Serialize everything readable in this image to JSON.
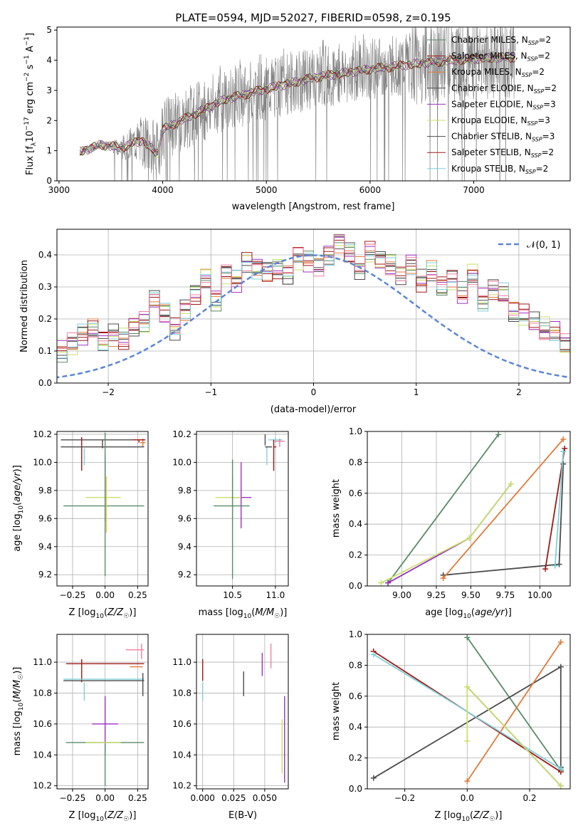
{
  "figure": {
    "title": "PLATE=0594, MJD=52027, FIBERID=0598, z=0.195"
  },
  "legend_labels": [
    {
      "base": "Chabrier MILES, N",
      "sub": "SSP",
      "tail": "=2"
    },
    {
      "base": "Salpeter MILES, N",
      "sub": "SSP",
      "tail": "=2"
    },
    {
      "base": "Kroupa MILES, N",
      "sub": "SSP",
      "tail": "=2"
    },
    {
      "base": "Chabrier ELODIE, N",
      "sub": "SSP",
      "tail": "=2"
    },
    {
      "base": "Salpeter ELODIE, N",
      "sub": "SSP",
      "tail": "=3"
    },
    {
      "base": "Kroupa ELODIE, N",
      "sub": "SSP",
      "tail": "=3"
    },
    {
      "base": "Chabrier STELIB, N",
      "sub": "SSP",
      "tail": "=3"
    },
    {
      "base": "Salpeter STELIB, N",
      "sub": "SSP",
      "tail": "=2"
    },
    {
      "base": "Kroupa STELIB, N",
      "sub": "SSP",
      "tail": "=2"
    }
  ],
  "chart_data": [
    {
      "id": "spectrum",
      "type": "line",
      "xlabel": "wavelength [Angstrom, rest frame]",
      "ylabel": "Flux [f",
      "ylabel_parts": [
        "Flux [f",
        "λ",
        "10",
        "−17",
        " erg cm",
        "−2",
        " s",
        "−1",
        " A",
        "−1",
        "]"
      ],
      "xlim": [
        2980,
        7930
      ],
      "ylim": [
        0,
        5.1
      ],
      "xticks": [
        3000,
        4000,
        5000,
        6000,
        7000
      ],
      "yticks": [
        0,
        1,
        2,
        3,
        4,
        5
      ],
      "series_colors": [
        "#5a8a6a",
        "#a01818",
        "#e07b39",
        "#4b4b4b",
        "#9b30c0",
        "#c8e06a",
        "#4b4b4b",
        "#a01818",
        "#7fd0d8"
      ],
      "data_color": "#808080",
      "continuum": [
        [
          3200,
          0.95
        ],
        [
          3400,
          1.2
        ],
        [
          3600,
          1.1
        ],
        [
          3800,
          1.35
        ],
        [
          3950,
          0.9
        ],
        [
          4000,
          1.7
        ],
        [
          4300,
          2.2
        ],
        [
          4600,
          2.7
        ],
        [
          5000,
          3.05
        ],
        [
          5500,
          3.45
        ],
        [
          6000,
          3.7
        ],
        [
          6500,
          3.9
        ],
        [
          7000,
          4.05
        ],
        [
          7400,
          4.1
        ]
      ]
    },
    {
      "id": "residuals",
      "type": "histogram",
      "xlabel": "(data-model)/error",
      "ylabel": "Normed distribution",
      "xlim": [
        -2.5,
        2.5
      ],
      "ylim": [
        0,
        0.48
      ],
      "xticks": [
        -2,
        -1,
        0,
        1,
        2
      ],
      "yticks": [
        0.0,
        0.1,
        0.2,
        0.3,
        0.4
      ],
      "legend": "𝒩(0, 1)",
      "gaussian_color": "#5b86d6",
      "bin_width": 0.1,
      "base_values": [
        0.02,
        0.02,
        0.03,
        0.03,
        0.03,
        0.04,
        0.05,
        0.06,
        0.08,
        0.09,
        0.1,
        0.12,
        0.15,
        0.17,
        0.13,
        0.15,
        0.14,
        0.18,
        0.19,
        0.26,
        0.22,
        0.17,
        0.23,
        0.28,
        0.33,
        0.26,
        0.34,
        0.32,
        0.38,
        0.36,
        0.35,
        0.36,
        0.34,
        0.39,
        0.38,
        0.37,
        0.4,
        0.44,
        0.41,
        0.36,
        0.41,
        0.38,
        0.37,
        0.34,
        0.37,
        0.32,
        0.35,
        0.3,
        0.32,
        0.28,
        0.34,
        0.26,
        0.29,
        0.28,
        0.22,
        0.21,
        0.19,
        0.17,
        0.16,
        0.12,
        0.14,
        0.1,
        0.09,
        0.08,
        0.07,
        0.06,
        0.05,
        0.05,
        0.04,
        0.03,
        0.02
      ],
      "series_colors": [
        "#5a8a6a",
        "#a01818",
        "#e07b39",
        "#4b4b4b",
        "#9b30c0",
        "#c8e06a",
        "#4b4b4b",
        "#a01818",
        "#7fd0d8",
        "#f080a0"
      ]
    },
    {
      "id": "age_vs_Z",
      "type": "errorbar",
      "xlabel": "Z [log10(Z/Z☉)]",
      "ylabel": "age [log10(age/yr)]",
      "xlim": [
        -0.37,
        0.33
      ],
      "ylim": [
        9.12,
        10.22
      ],
      "xticks": [
        -0.25,
        0.0,
        0.25
      ],
      "yticks": [
        9.2,
        9.4,
        9.6,
        9.8,
        10.0,
        10.2
      ],
      "points": [
        {
          "x": -0.02,
          "xe": [
            0.32,
            0.32
          ],
          "y": 10.16,
          "ye": [
            0.06,
            0.0
          ],
          "c": "#4b4b4b"
        },
        {
          "x": 0.29,
          "xe": [
            0.02,
            0.02
          ],
          "y": 10.14,
          "ye": [
            0.03,
            0.03
          ],
          "c": "#e07b39"
        },
        {
          "x": 0.26,
          "xe": [
            0.05,
            0.05
          ],
          "y": 10.16,
          "ye": [
            0.02,
            0.0
          ],
          "c": "#a01818"
        },
        {
          "x": -0.18,
          "xe": [
            0.0,
            0.0
          ],
          "y": 10.1,
          "ye": [
            0.16,
            0.08
          ],
          "c": "#a01818"
        },
        {
          "x": -0.16,
          "xe": [
            0.0,
            0.0
          ],
          "y": 10.1,
          "ye": [
            0.12,
            0.0
          ],
          "c": "#7fd0d8"
        },
        {
          "x": 0.0,
          "xe": [
            0.34,
            0.3
          ],
          "y": 10.11,
          "ye": [
            0.01,
            0.01
          ],
          "c": "#4b4b4b"
        },
        {
          "x": 0.0,
          "xe": [
            0.0,
            0.0
          ],
          "y": 9.8,
          "ye": [
            0.22,
            0.25
          ],
          "c": "#9b30c0"
        },
        {
          "x": 0.0,
          "xe": [
            0.15,
            0.12
          ],
          "y": 9.75,
          "ye": [
            0.0,
            0.0
          ],
          "c": "#c8e06a"
        },
        {
          "x": 0.0,
          "xe": [
            0.32,
            0.3
          ],
          "y": 9.69,
          "ye": [
            0.5,
            0.52
          ],
          "c": "#5a8a6a"
        },
        {
          "x": 0.01,
          "xe": [
            0.0,
            0.0
          ],
          "y": 9.75,
          "ye": [
            0.25,
            0.15
          ],
          "c": "#e8d040"
        }
      ]
    },
    {
      "id": "age_vs_mass",
      "type": "errorbar",
      "xlabel": "mass [log10(M/M☉)]",
      "ylabel": "",
      "xlim": [
        10.08,
        11.15
      ],
      "ylim": [
        9.12,
        10.22
      ],
      "xticks": [
        10.5,
        11.0
      ],
      "yticks": [
        9.2,
        9.4,
        9.6,
        9.8,
        10.0,
        10.2
      ],
      "points": [
        {
          "x": 10.88,
          "xe": [
            0.0,
            0.0
          ],
          "y": 10.16,
          "ye": [
            0.04,
            0.04
          ],
          "c": "#4b4b4b"
        },
        {
          "x": 11.0,
          "xe": [
            0.08,
            0.08
          ],
          "y": 10.16,
          "ye": [
            0.02,
            0.02
          ],
          "c": "#7fd0d8"
        },
        {
          "x": 11.05,
          "xe": [
            0.06,
            0.06
          ],
          "y": 10.15,
          "ye": [
            0.04,
            0.02
          ],
          "c": "#f080a0"
        },
        {
          "x": 10.98,
          "xe": [
            0.0,
            0.03
          ],
          "y": 10.11,
          "ye": [
            0.17,
            0.05
          ],
          "c": "#a01818"
        },
        {
          "x": 10.9,
          "xe": [
            0.0,
            0.0
          ],
          "y": 10.11,
          "ye": [
            0.13,
            0.0
          ],
          "c": "#7fd0d8"
        },
        {
          "x": 10.92,
          "xe": [
            0.04,
            0.04
          ],
          "y": 10.11,
          "ye": [
            0.0,
            0.0
          ],
          "c": "#4b4b4b"
        },
        {
          "x": 10.6,
          "xe": [
            0.12,
            0.12
          ],
          "y": 9.75,
          "ye": [
            0.22,
            0.25
          ],
          "c": "#9b30c0"
        },
        {
          "x": 10.5,
          "xe": [
            0.2,
            0.1
          ],
          "y": 9.75,
          "ye": [
            0.15,
            0.15
          ],
          "c": "#c8e06a"
        },
        {
          "x": 10.5,
          "xe": [
            0.22,
            0.2
          ],
          "y": 9.69,
          "ye": [
            0.52,
            0.33
          ],
          "c": "#5a8a6a"
        }
      ]
    },
    {
      "id": "weight_vs_age",
      "type": "line",
      "xlabel": "age [log10(age/yr)]",
      "ylabel": "mass weight",
      "xlim": [
        8.75,
        10.22
      ],
      "ylim": [
        0,
        1.0
      ],
      "xticks": [
        9.0,
        9.25,
        9.5,
        9.75,
        10.0
      ],
      "yticks": [
        0.0,
        0.2,
        0.4,
        0.6,
        0.8,
        1.0
      ],
      "series": [
        {
          "c": "#5a8a6a",
          "x": [
            8.9,
            9.7
          ],
          "y": [
            0.02,
            0.98
          ]
        },
        {
          "c": "#4b4b4b",
          "x": [
            9.3,
            10.14,
            10.17
          ],
          "y": [
            0.07,
            0.14,
            0.79
          ]
        },
        {
          "c": "#e07b39",
          "x": [
            9.3,
            10.17
          ],
          "y": [
            0.05,
            0.95
          ]
        },
        {
          "c": "#a01818",
          "x": [
            10.04,
            10.18
          ],
          "y": [
            0.11,
            0.89
          ]
        },
        {
          "c": "#7fd0d8",
          "x": [
            10.11,
            10.17
          ],
          "y": [
            0.13,
            0.87
          ]
        },
        {
          "c": "#9b30c0",
          "x": [
            8.9,
            9.49,
            9.79
          ],
          "y": [
            0.02,
            0.31,
            0.66
          ]
        },
        {
          "c": "#c8e06a",
          "x": [
            8.85,
            9.49,
            9.79
          ],
          "y": [
            0.02,
            0.31,
            0.66
          ]
        }
      ]
    },
    {
      "id": "mass_vs_Z",
      "type": "errorbar",
      "xlabel": "Z [log10(Z/Z☉)]",
      "ylabel": "mass [log10(M/M☉)]",
      "xlim": [
        -0.37,
        0.33
      ],
      "ylim": [
        10.18,
        11.18
      ],
      "xticks": [
        -0.25,
        0.0,
        0.25
      ],
      "yticks": [
        10.2,
        10.4,
        10.6,
        10.8,
        11.0
      ],
      "points": [
        {
          "x": 0.28,
          "xe": [
            0.0,
            0.0
          ],
          "y": 11.07,
          "ye": [
            0.05,
            0.05
          ],
          "c": "#f080a0"
        },
        {
          "x": 0.23,
          "xe": [
            0.07,
            0.07
          ],
          "y": 11.08,
          "ye": [
            0.0,
            0.0
          ],
          "c": "#f080a0"
        },
        {
          "x": 0.24,
          "xe": [
            0.05,
            0.05
          ],
          "y": 10.97,
          "ye": [
            0.0,
            0.0
          ],
          "c": "#e07b39"
        },
        {
          "x": 0.0,
          "xe": [
            0.3,
            0.3
          ],
          "y": 10.99,
          "ye": [
            0.0,
            0.0
          ],
          "c": "#a01818"
        },
        {
          "x": -0.18,
          "xe": [
            0.0,
            0.0
          ],
          "y": 10.95,
          "ye": [
            0.08,
            0.07
          ],
          "c": "#a01818"
        },
        {
          "x": -0.16,
          "xe": [
            0.0,
            0.0
          ],
          "y": 10.87,
          "ye": [
            0.12,
            0.0
          ],
          "c": "#7fd0d8"
        },
        {
          "x": 0.0,
          "xe": [
            0.32,
            0.3
          ],
          "y": 10.89,
          "ye": [
            0.0,
            0.0
          ],
          "c": "#7fd0d8"
        },
        {
          "x": 0.0,
          "xe": [
            0.32,
            0.3
          ],
          "y": 10.88,
          "ye": [
            0.0,
            0.0
          ],
          "c": "#4b4b4b"
        },
        {
          "x": 0.29,
          "xe": [
            0.0,
            0.0
          ],
          "y": 10.88,
          "ye": [
            0.1,
            0.05
          ],
          "c": "#4b4b4b"
        },
        {
          "x": 0.0,
          "xe": [
            0.0,
            0.0
          ],
          "y": 10.6,
          "ye": [
            0.2,
            0.18
          ],
          "c": "#9b30c0"
        },
        {
          "x": 0.0,
          "xe": [
            0.1,
            0.1
          ],
          "y": 10.6,
          "ye": [
            0.0,
            0.0
          ],
          "c": "#9b30c0"
        },
        {
          "x": 0.0,
          "xe": [
            0.3,
            0.3
          ],
          "y": 10.48,
          "ye": [
            0.28,
            0.0
          ],
          "c": "#5a8a6a"
        },
        {
          "x": 0.0,
          "xe": [
            0.15,
            0.12
          ],
          "y": 10.48,
          "ye": [
            0.0,
            0.0
          ],
          "c": "#c8e06a"
        }
      ]
    },
    {
      "id": "mass_vs_ebv",
      "type": "errorbar",
      "xlabel": "E(B-V)",
      "ylabel": "",
      "xlim": [
        -0.005,
        0.069
      ],
      "ylim": [
        10.18,
        11.18
      ],
      "xticks": [
        0.0,
        0.025,
        0.05
      ],
      "xticklabels": [
        "0.000",
        "0.025",
        "0.050"
      ],
      "yticks": [
        10.2,
        10.4,
        10.6,
        10.8,
        11.0
      ],
      "points": [
        {
          "x": 0.0,
          "xe": [
            0.0,
            0.0
          ],
          "y": 10.95,
          "ye": [
            0.07,
            0.07
          ],
          "c": "#a01818"
        },
        {
          "x": 0.0,
          "xe": [
            0.0,
            0.0
          ],
          "y": 10.87,
          "ye": [
            0.12,
            0.0
          ],
          "c": "#7fd0d8"
        },
        {
          "x": 0.033,
          "xe": [
            0.0,
            0.0
          ],
          "y": 10.86,
          "ye": [
            0.08,
            0.08
          ],
          "c": "#4b4b4b"
        },
        {
          "x": 0.048,
          "xe": [
            0.0,
            0.0
          ],
          "y": 10.98,
          "ye": [
            0.07,
            0.08
          ],
          "c": "#9b30c0"
        },
        {
          "x": 0.055,
          "xe": [
            0.0,
            0.0
          ],
          "y": 11.04,
          "ye": [
            0.08,
            0.08
          ],
          "c": "#f080a0"
        },
        {
          "x": 0.066,
          "xe": [
            0.0,
            0.0
          ],
          "y": 10.5,
          "ye": [
            0.28,
            0.28
          ],
          "c": "#9b30c0"
        },
        {
          "x": 0.064,
          "xe": [
            0.0,
            0.0
          ],
          "y": 10.48,
          "ye": [
            0.2,
            0.15
          ],
          "c": "#c8e06a"
        }
      ]
    },
    {
      "id": "weight_vs_Z",
      "type": "line",
      "xlabel": "Z [log10(Z/Z☉)]",
      "ylabel": "mass weight",
      "xlim": [
        -0.32,
        0.33
      ],
      "ylim": [
        0,
        1.0
      ],
      "xticks": [
        -0.2,
        0.0,
        0.2
      ],
      "yticks": [
        0.0,
        0.2,
        0.4,
        0.6,
        0.8,
        1.0
      ],
      "series": [
        {
          "c": "#5a8a6a",
          "x": [
            0.0,
            0.3
          ],
          "y": [
            0.98,
            0.12
          ]
        },
        {
          "c": "#4b4b4b",
          "x": [
            -0.3,
            0.3,
            0.3
          ],
          "y": [
            0.07,
            0.79,
            0.14
          ]
        },
        {
          "c": "#e07b39",
          "x": [
            0.0,
            0.3
          ],
          "y": [
            0.05,
            0.95
          ]
        },
        {
          "c": "#a01818",
          "x": [
            -0.3,
            0.3
          ],
          "y": [
            0.89,
            0.11
          ]
        },
        {
          "c": "#7fd0d8",
          "x": [
            -0.3,
            0.3
          ],
          "y": [
            0.87,
            0.13
          ]
        },
        {
          "c": "#9b30c0",
          "x": [
            0.0,
            0.3
          ],
          "y": [
            0.66,
            0.02
          ]
        },
        {
          "c": "#c8e06a",
          "x": [
            0.0,
            0.0,
            0.3
          ],
          "y": [
            0.31,
            0.66,
            0.02
          ]
        }
      ]
    }
  ]
}
